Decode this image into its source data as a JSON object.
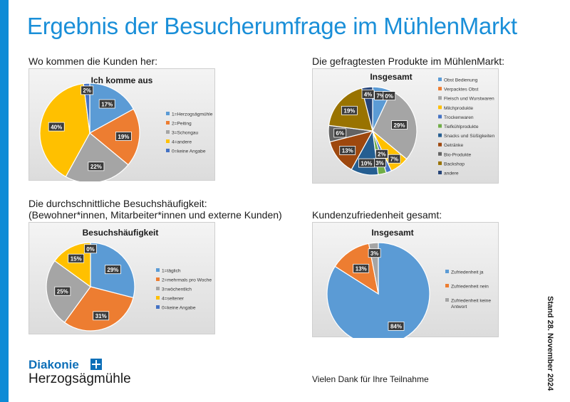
{
  "page": {
    "title": "Ergebnis der Besucherumfrage im MühlenMarkt",
    "label_origin": "Wo kommen die Kunden her:",
    "label_products": "Die gefragtesten Produkte im MühlenMarkt:",
    "label_frequency_1": "Die durchschnittliche Besuchshäufigkeit:",
    "label_frequency_2": "(Bewohner*innen, Mitarbeiter*innen und externe Kunden)",
    "label_satisfaction": "Kundenzufriedenheit gesamt:",
    "stand": "Stand 28. November 2024",
    "brand_name": "Diakonie",
    "brand_sub": "Herzogsägmühle",
    "thanks": "Vielen Dank für Ihre Teilnahme"
  },
  "chart_data": [
    {
      "type": "pie",
      "title": "Ich komme aus",
      "legend_position": "right",
      "slices": [
        {
          "name": "1=Herzogsägmühle",
          "value": 17,
          "label": "17%",
          "color": "#5b9bd5"
        },
        {
          "name": "2=Peiting",
          "value": 19,
          "label": "19%",
          "color": "#ed7d31"
        },
        {
          "name": "3=Schongau",
          "value": 22,
          "label": "22%",
          "color": "#a5a5a5"
        },
        {
          "name": "4=andere",
          "value": 40,
          "label": "40%",
          "color": "#ffc000"
        },
        {
          "name": "0=keine Angabe",
          "value": 2,
          "label": "2%",
          "color": "#4472c4"
        }
      ]
    },
    {
      "type": "pie",
      "title": "Insgesamt",
      "legend_position": "right",
      "slices": [
        {
          "name": "Obst Bedienung",
          "value": 7,
          "label": "7%",
          "color": "#5b9bd5"
        },
        {
          "name": "Verpacktes Obst",
          "value": 0,
          "label": "0%",
          "color": "#ed7d31"
        },
        {
          "name": "Fleisch und Wurstwaren",
          "value": 29,
          "label": "29%",
          "color": "#a5a5a5"
        },
        {
          "name": "Milchprodukte",
          "value": 7,
          "label": "7%",
          "color": "#ffc000"
        },
        {
          "name": "Trockenwaren",
          "value": 2,
          "label": "2%",
          "color": "#4472c4"
        },
        {
          "name": "Tiefkühlprodukte",
          "value": 3,
          "label": "3%",
          "color": "#70ad47"
        },
        {
          "name": "Snacks und Süßigkeiten",
          "value": 10,
          "label": "10%",
          "color": "#255e91"
        },
        {
          "name": "Getränke",
          "value": 13,
          "label": "13%",
          "color": "#9e480e"
        },
        {
          "name": "Bio-Produkte",
          "value": 6,
          "label": "6%",
          "color": "#636363"
        },
        {
          "name": "Backshop",
          "value": 19,
          "label": "19%",
          "color": "#997300"
        },
        {
          "name": "andere",
          "value": 4,
          "label": "4%",
          "color": "#264478"
        }
      ]
    },
    {
      "type": "pie",
      "title": "Besuchshäufigkeit",
      "legend_position": "right",
      "slices": [
        {
          "name": "1=täglich",
          "value": 29,
          "label": "29%",
          "color": "#5b9bd5"
        },
        {
          "name": "2=mehrmals pro Woche",
          "value": 31,
          "label": "31%",
          "color": "#ed7d31"
        },
        {
          "name": "3=wöchentlich",
          "value": 25,
          "label": "25%",
          "color": "#a5a5a5"
        },
        {
          "name": "4=seltener",
          "value": 15,
          "label": "15%",
          "color": "#ffc000"
        },
        {
          "name": "0=keine Angabe",
          "value": 0,
          "label": "0%",
          "color": "#4472c4"
        }
      ]
    },
    {
      "type": "pie",
      "title": "Insgesamt",
      "legend_position": "right",
      "slices": [
        {
          "name": "Zufriedenheit ja",
          "value": 84,
          "label": "84%",
          "color": "#5b9bd5"
        },
        {
          "name": "Zufriedenheit nein",
          "value": 13,
          "label": "13%",
          "color": "#ed7d31"
        },
        {
          "name": "Zufriedenheit keine Antwort",
          "value": 3,
          "label": "3%",
          "color": "#a5a5a5"
        }
      ]
    }
  ]
}
